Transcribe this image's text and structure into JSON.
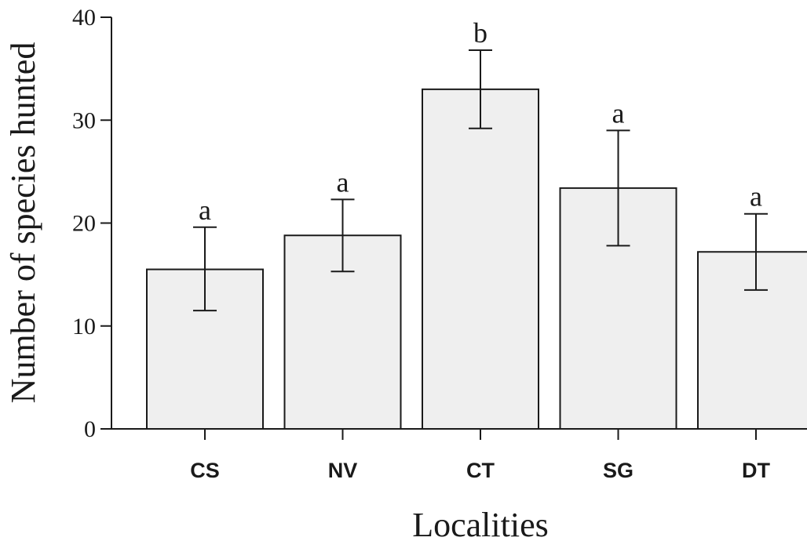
{
  "chart_data": {
    "type": "bar",
    "title": "",
    "xlabel": "Localities",
    "ylabel": "Number of species hunted",
    "categories": [
      "CS",
      "NV",
      "CT",
      "SG",
      "DT"
    ],
    "values": [
      15.5,
      18.8,
      33.0,
      23.4,
      17.2
    ],
    "error_low": [
      11.5,
      15.3,
      29.2,
      17.8,
      13.5
    ],
    "error_high": [
      19.6,
      22.3,
      36.8,
      29.0,
      20.9
    ],
    "significance_letters": [
      "a",
      "a",
      "b",
      "a",
      "a"
    ],
    "ylim": [
      0,
      40
    ],
    "yticks": [
      "0",
      "10",
      "20",
      "30",
      "40"
    ],
    "grid": false,
    "colors": {
      "bar_fill": "#efefef",
      "stroke": "#1a1a1a"
    }
  }
}
